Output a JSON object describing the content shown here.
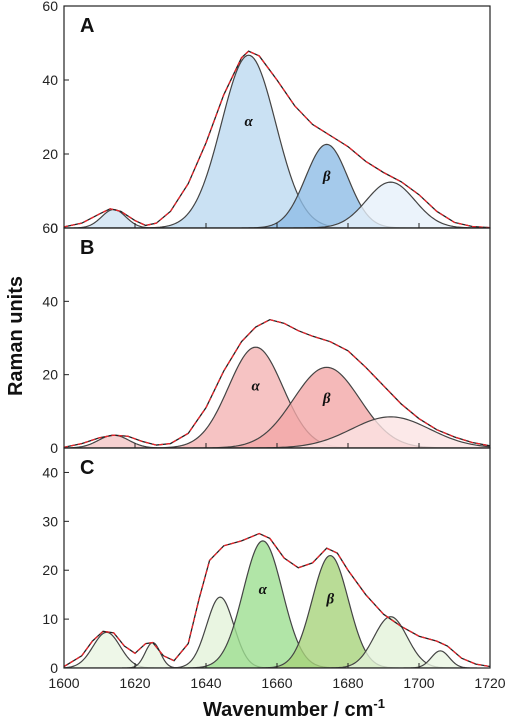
{
  "chart_data": {
    "type": "area",
    "xlabel": "Wavenumber  / cm",
    "xlabel_superscript": "-1",
    "ylabel": "Raman units",
    "xlim": [
      1600,
      1720
    ],
    "x_ticks": [
      1600,
      1620,
      1640,
      1660,
      1680,
      1700,
      1720
    ],
    "colors": {
      "envelope": "#222222",
      "fit": "#e8232a",
      "outline": "#444444"
    },
    "panels": [
      {
        "letter": "A",
        "ylim": [
          0,
          60
        ],
        "y_ticks": [
          0,
          20,
          40,
          60
        ],
        "envelope": [
          [
            1600,
            0.3
          ],
          [
            1605,
            1.3
          ],
          [
            1610,
            3.8
          ],
          [
            1613,
            5.2
          ],
          [
            1616,
            4.5
          ],
          [
            1620,
            2.0
          ],
          [
            1623,
            0.7
          ],
          [
            1626,
            1.3
          ],
          [
            1630,
            4.5
          ],
          [
            1635,
            12
          ],
          [
            1640,
            23
          ],
          [
            1645,
            36
          ],
          [
            1650,
            46
          ],
          [
            1652,
            47.8
          ],
          [
            1655,
            46.5
          ],
          [
            1660,
            40
          ],
          [
            1665,
            33
          ],
          [
            1670,
            28
          ],
          [
            1675,
            25
          ],
          [
            1680,
            22
          ],
          [
            1685,
            18
          ],
          [
            1690,
            15
          ],
          [
            1695,
            12.5
          ],
          [
            1700,
            9
          ],
          [
            1705,
            4.5
          ],
          [
            1710,
            1.5
          ],
          [
            1715,
            0.4
          ],
          [
            1720,
            0.1
          ]
        ],
        "bands": [
          {
            "center": 1614,
            "height": 5.0,
            "fwhm": 8,
            "fill": "#cfe2f3",
            "label": ""
          },
          {
            "center": 1652,
            "height": 46.7,
            "fwhm": 18,
            "fill": "#bdd9f0",
            "label": "α"
          },
          {
            "center": 1674,
            "height": 22.6,
            "fwhm": 14,
            "fill": "#8ebde6",
            "label": "β"
          },
          {
            "center": 1692,
            "height": 12.4,
            "fwhm": 16,
            "fill": "#e6f0fa",
            "label": ""
          }
        ]
      },
      {
        "letter": "B",
        "ylim": [
          0,
          60
        ],
        "y_ticks": [
          0,
          20,
          40,
          60
        ],
        "envelope": [
          [
            1600,
            0.2
          ],
          [
            1605,
            1.2
          ],
          [
            1610,
            2.8
          ],
          [
            1614,
            3.5
          ],
          [
            1618,
            3.2
          ],
          [
            1622,
            1.8
          ],
          [
            1626,
            0.8
          ],
          [
            1630,
            1.2
          ],
          [
            1635,
            4
          ],
          [
            1640,
            11
          ],
          [
            1645,
            21
          ],
          [
            1650,
            29
          ],
          [
            1654,
            33
          ],
          [
            1658,
            35
          ],
          [
            1662,
            34
          ],
          [
            1666,
            32
          ],
          [
            1670,
            30.5
          ],
          [
            1675,
            29
          ],
          [
            1680,
            26.5
          ],
          [
            1685,
            22
          ],
          [
            1690,
            17
          ],
          [
            1695,
            12
          ],
          [
            1700,
            8
          ],
          [
            1705,
            5
          ],
          [
            1710,
            3
          ],
          [
            1715,
            1.5
          ],
          [
            1720,
            0.6
          ]
        ],
        "bands": [
          {
            "center": 1614,
            "height": 3.5,
            "fwhm": 10,
            "fill": "#f4c6c6",
            "label": ""
          },
          {
            "center": 1654,
            "height": 27.5,
            "fwhm": 18,
            "fill": "#f4b4b4",
            "label": "α"
          },
          {
            "center": 1674,
            "height": 22,
            "fwhm": 22,
            "fill": "#f2a7a7",
            "label": "β"
          },
          {
            "center": 1692,
            "height": 8.5,
            "fwhm": 26,
            "fill": "#fbe3e3",
            "label": ""
          }
        ]
      },
      {
        "letter": "C",
        "ylim": [
          0,
          45
        ],
        "y_ticks": [
          0,
          10,
          20,
          30,
          40
        ],
        "envelope": [
          [
            1600,
            0.3
          ],
          [
            1605,
            2.5
          ],
          [
            1608,
            5.5
          ],
          [
            1611,
            7.5
          ],
          [
            1614,
            7.2
          ],
          [
            1617,
            4.5
          ],
          [
            1620,
            3.0
          ],
          [
            1623,
            5.0
          ],
          [
            1625,
            5.2
          ],
          [
            1628,
            2.5
          ],
          [
            1631,
            1.5
          ],
          [
            1635,
            5
          ],
          [
            1638,
            14
          ],
          [
            1641,
            22
          ],
          [
            1645,
            25
          ],
          [
            1650,
            26
          ],
          [
            1655,
            27.5
          ],
          [
            1658,
            26.5
          ],
          [
            1662,
            22.5
          ],
          [
            1666,
            20.5
          ],
          [
            1670,
            21.5
          ],
          [
            1674,
            24.5
          ],
          [
            1677,
            23.5
          ],
          [
            1680,
            20
          ],
          [
            1685,
            15
          ],
          [
            1690,
            11
          ],
          [
            1695,
            8.5
          ],
          [
            1700,
            6.5
          ],
          [
            1705,
            5.5
          ],
          [
            1708,
            4.5
          ],
          [
            1712,
            2
          ],
          [
            1716,
            0.8
          ],
          [
            1720,
            0.3
          ]
        ],
        "bands": [
          {
            "center": 1612,
            "height": 7.3,
            "fwhm": 9,
            "fill": "#eaf5e2",
            "label": ""
          },
          {
            "center": 1625,
            "height": 5.2,
            "fwhm": 5,
            "fill": "#eaf5e2",
            "label": ""
          },
          {
            "center": 1644,
            "height": 14.5,
            "fwhm": 9,
            "fill": "#e3f2d9",
            "label": ""
          },
          {
            "center": 1656,
            "height": 26,
            "fwhm": 13,
            "fill": "#9edf91",
            "label": "α"
          },
          {
            "center": 1675,
            "height": 23,
            "fwhm": 12,
            "fill": "#a8d37c",
            "label": "β"
          },
          {
            "center": 1692,
            "height": 10.5,
            "fwhm": 11,
            "fill": "#e3f2d9",
            "label": ""
          },
          {
            "center": 1706,
            "height": 3.5,
            "fwhm": 6,
            "fill": "#eaf5e2",
            "label": ""
          }
        ]
      }
    ]
  }
}
